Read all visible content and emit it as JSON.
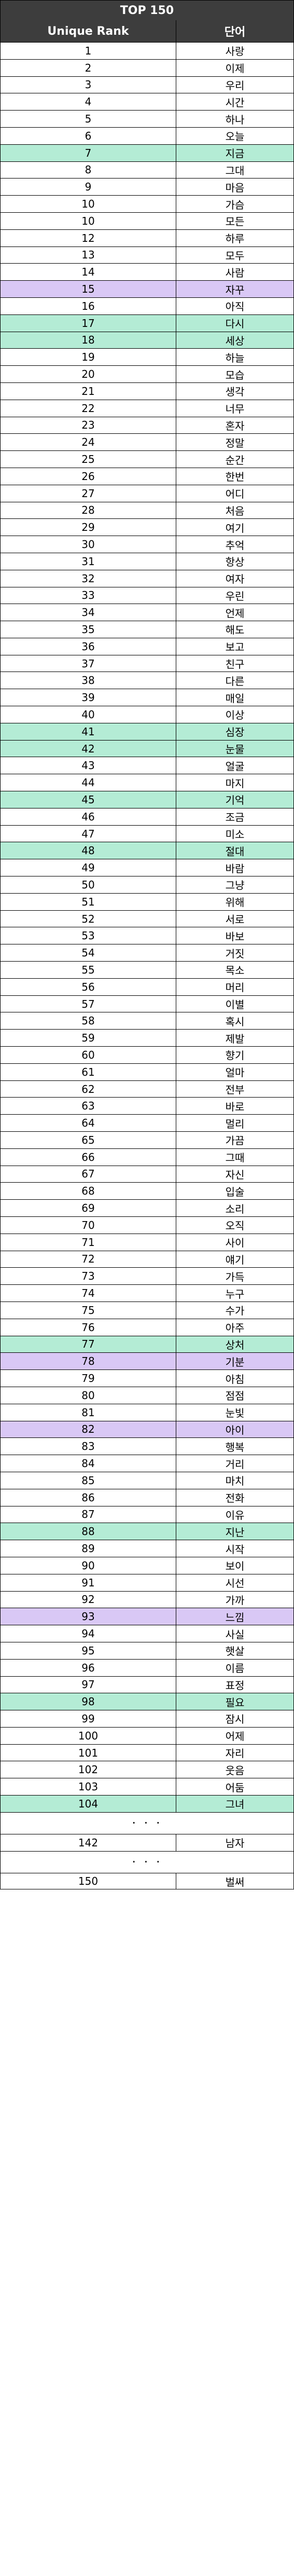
{
  "title": "TOP 150",
  "header": {
    "rank_label": "Unique Rank",
    "word_label": "단어"
  },
  "rows": [
    {
      "rank": "1",
      "word": "사랑",
      "hl": ""
    },
    {
      "rank": "2",
      "word": "이제",
      "hl": ""
    },
    {
      "rank": "3",
      "word": "우리",
      "hl": ""
    },
    {
      "rank": "4",
      "word": "시간",
      "hl": ""
    },
    {
      "rank": "5",
      "word": "하나",
      "hl": ""
    },
    {
      "rank": "6",
      "word": "오늘",
      "hl": ""
    },
    {
      "rank": "7",
      "word": "지금",
      "hl": "teal"
    },
    {
      "rank": "8",
      "word": "그대",
      "hl": ""
    },
    {
      "rank": "9",
      "word": "마음",
      "hl": ""
    },
    {
      "rank": "10",
      "word": "가슴",
      "hl": ""
    },
    {
      "rank": "10",
      "word": "모든",
      "hl": ""
    },
    {
      "rank": "12",
      "word": "하루",
      "hl": ""
    },
    {
      "rank": "13",
      "word": "모두",
      "hl": ""
    },
    {
      "rank": "14",
      "word": "사람",
      "hl": ""
    },
    {
      "rank": "15",
      "word": "자꾸",
      "hl": "lav"
    },
    {
      "rank": "16",
      "word": "아직",
      "hl": ""
    },
    {
      "rank": "17",
      "word": "다시",
      "hl": "teal"
    },
    {
      "rank": "18",
      "word": "세상",
      "hl": "teal"
    },
    {
      "rank": "19",
      "word": "하늘",
      "hl": ""
    },
    {
      "rank": "20",
      "word": "모습",
      "hl": ""
    },
    {
      "rank": "21",
      "word": "생각",
      "hl": ""
    },
    {
      "rank": "22",
      "word": "너무",
      "hl": ""
    },
    {
      "rank": "23",
      "word": "혼자",
      "hl": ""
    },
    {
      "rank": "24",
      "word": "정말",
      "hl": ""
    },
    {
      "rank": "25",
      "word": "순간",
      "hl": ""
    },
    {
      "rank": "26",
      "word": "한번",
      "hl": ""
    },
    {
      "rank": "27",
      "word": "어디",
      "hl": ""
    },
    {
      "rank": "28",
      "word": "처음",
      "hl": ""
    },
    {
      "rank": "29",
      "word": "여기",
      "hl": ""
    },
    {
      "rank": "30",
      "word": "추억",
      "hl": ""
    },
    {
      "rank": "31",
      "word": "항상",
      "hl": ""
    },
    {
      "rank": "32",
      "word": "여자",
      "hl": ""
    },
    {
      "rank": "33",
      "word": "우린",
      "hl": ""
    },
    {
      "rank": "34",
      "word": "언제",
      "hl": ""
    },
    {
      "rank": "35",
      "word": "해도",
      "hl": ""
    },
    {
      "rank": "36",
      "word": "보고",
      "hl": ""
    },
    {
      "rank": "37",
      "word": "친구",
      "hl": ""
    },
    {
      "rank": "38",
      "word": "다른",
      "hl": ""
    },
    {
      "rank": "39",
      "word": "매일",
      "hl": ""
    },
    {
      "rank": "40",
      "word": "이상",
      "hl": ""
    },
    {
      "rank": "41",
      "word": "심장",
      "hl": "teal"
    },
    {
      "rank": "42",
      "word": "눈물",
      "hl": "teal"
    },
    {
      "rank": "43",
      "word": "얼굴",
      "hl": ""
    },
    {
      "rank": "44",
      "word": "마지",
      "hl": ""
    },
    {
      "rank": "45",
      "word": "기억",
      "hl": "teal"
    },
    {
      "rank": "46",
      "word": "조금",
      "hl": ""
    },
    {
      "rank": "47",
      "word": "미소",
      "hl": ""
    },
    {
      "rank": "48",
      "word": "절대",
      "hl": "teal"
    },
    {
      "rank": "49",
      "word": "바람",
      "hl": ""
    },
    {
      "rank": "50",
      "word": "그냥",
      "hl": ""
    },
    {
      "rank": "51",
      "word": "위해",
      "hl": ""
    },
    {
      "rank": "52",
      "word": "서로",
      "hl": ""
    },
    {
      "rank": "53",
      "word": "바보",
      "hl": ""
    },
    {
      "rank": "54",
      "word": "거짓",
      "hl": ""
    },
    {
      "rank": "55",
      "word": "목소",
      "hl": ""
    },
    {
      "rank": "56",
      "word": "머리",
      "hl": ""
    },
    {
      "rank": "57",
      "word": "이별",
      "hl": ""
    },
    {
      "rank": "58",
      "word": "혹시",
      "hl": ""
    },
    {
      "rank": "59",
      "word": "제발",
      "hl": ""
    },
    {
      "rank": "60",
      "word": "향기",
      "hl": ""
    },
    {
      "rank": "61",
      "word": "얼마",
      "hl": ""
    },
    {
      "rank": "62",
      "word": "전부",
      "hl": ""
    },
    {
      "rank": "63",
      "word": "바로",
      "hl": ""
    },
    {
      "rank": "64",
      "word": "멀리",
      "hl": ""
    },
    {
      "rank": "65",
      "word": "가끔",
      "hl": ""
    },
    {
      "rank": "66",
      "word": "그때",
      "hl": ""
    },
    {
      "rank": "67",
      "word": "자신",
      "hl": ""
    },
    {
      "rank": "68",
      "word": "입술",
      "hl": ""
    },
    {
      "rank": "69",
      "word": "소리",
      "hl": ""
    },
    {
      "rank": "70",
      "word": "오직",
      "hl": ""
    },
    {
      "rank": "71",
      "word": "사이",
      "hl": ""
    },
    {
      "rank": "72",
      "word": "얘기",
      "hl": ""
    },
    {
      "rank": "73",
      "word": "가득",
      "hl": ""
    },
    {
      "rank": "74",
      "word": "누구",
      "hl": ""
    },
    {
      "rank": "75",
      "word": "수가",
      "hl": ""
    },
    {
      "rank": "76",
      "word": "아주",
      "hl": ""
    },
    {
      "rank": "77",
      "word": "상처",
      "hl": "teal"
    },
    {
      "rank": "78",
      "word": "기분",
      "hl": "lav"
    },
    {
      "rank": "79",
      "word": "아침",
      "hl": ""
    },
    {
      "rank": "80",
      "word": "점점",
      "hl": ""
    },
    {
      "rank": "81",
      "word": "눈빛",
      "hl": ""
    },
    {
      "rank": "82",
      "word": "아이",
      "hl": "lav"
    },
    {
      "rank": "83",
      "word": "행복",
      "hl": ""
    },
    {
      "rank": "84",
      "word": "거리",
      "hl": ""
    },
    {
      "rank": "85",
      "word": "마치",
      "hl": ""
    },
    {
      "rank": "86",
      "word": "전화",
      "hl": ""
    },
    {
      "rank": "87",
      "word": "이유",
      "hl": ""
    },
    {
      "rank": "88",
      "word": "지난",
      "hl": "teal"
    },
    {
      "rank": "89",
      "word": "시작",
      "hl": ""
    },
    {
      "rank": "90",
      "word": "보이",
      "hl": ""
    },
    {
      "rank": "91",
      "word": "시선",
      "hl": ""
    },
    {
      "rank": "92",
      "word": "가까",
      "hl": ""
    },
    {
      "rank": "93",
      "word": "느낌",
      "hl": "lav"
    },
    {
      "rank": "94",
      "word": "사실",
      "hl": ""
    },
    {
      "rank": "95",
      "word": "햇살",
      "hl": ""
    },
    {
      "rank": "96",
      "word": "이름",
      "hl": ""
    },
    {
      "rank": "97",
      "word": "표정",
      "hl": ""
    },
    {
      "rank": "98",
      "word": "필요",
      "hl": "teal"
    },
    {
      "rank": "99",
      "word": "잠시",
      "hl": ""
    },
    {
      "rank": "100",
      "word": "어제",
      "hl": ""
    },
    {
      "rank": "101",
      "word": "자리",
      "hl": ""
    },
    {
      "rank": "102",
      "word": "웃음",
      "hl": ""
    },
    {
      "rank": "103",
      "word": "어둠",
      "hl": ""
    },
    {
      "rank": "104",
      "word": "그녀",
      "hl": "teal"
    }
  ],
  "ellipsis": "· · ·",
  "row_142": {
    "rank": "142",
    "word": "남자"
  },
  "row_150": {
    "rank": "150",
    "word": "벌써"
  }
}
